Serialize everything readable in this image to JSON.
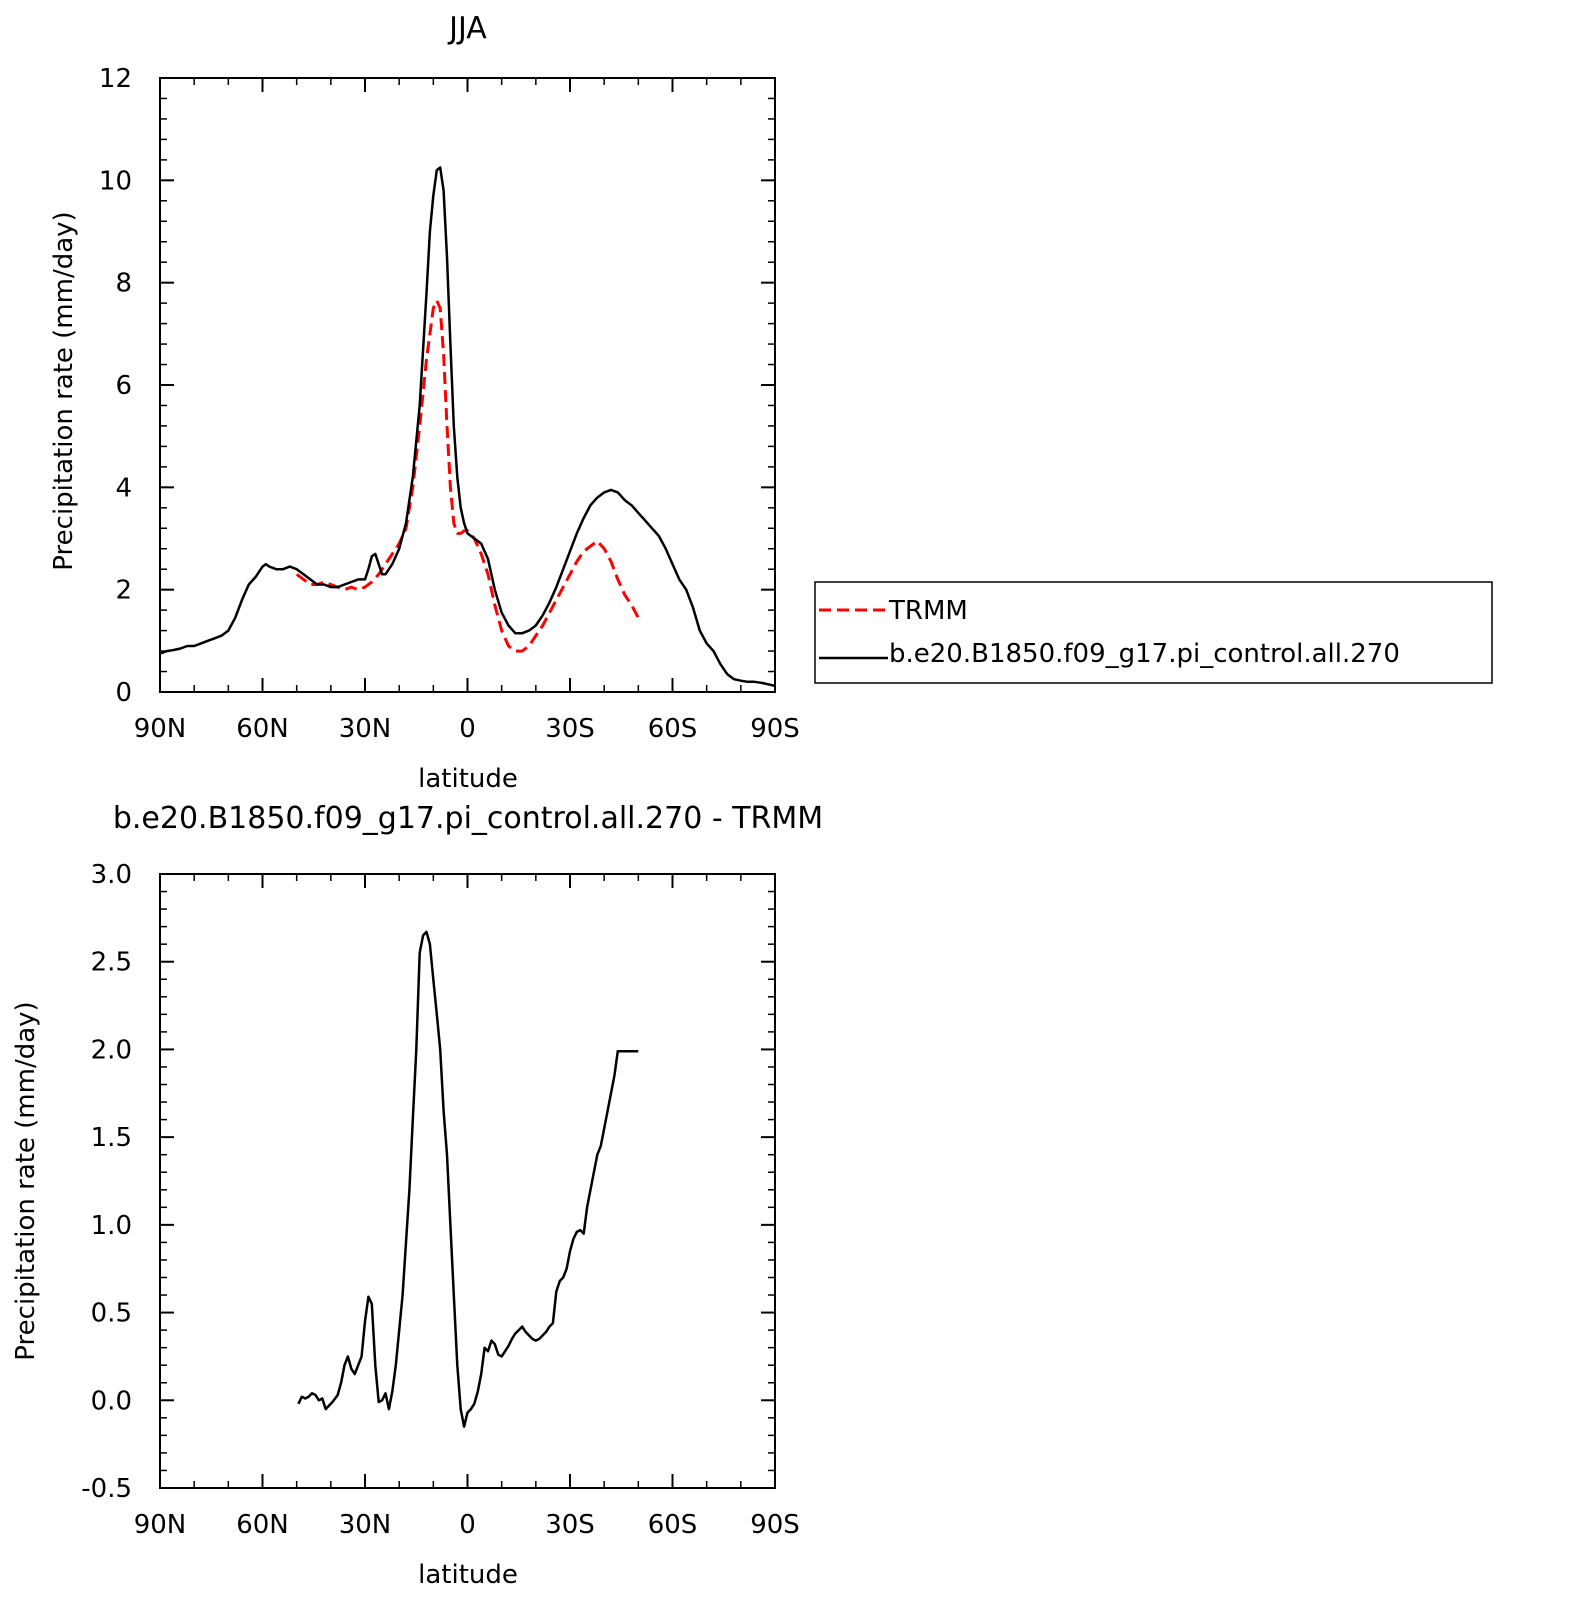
{
  "chart_data": [
    {
      "type": "line",
      "title": "JJA",
      "xlabel": "latitude",
      "ylabel": "Precipitation rate (mm/day)",
      "xlim": [
        90,
        -90
      ],
      "ylim": [
        0,
        12
      ],
      "x_ticks": [
        {
          "value": 90,
          "label": "90N"
        },
        {
          "value": 60,
          "label": "60N"
        },
        {
          "value": 30,
          "label": "30N"
        },
        {
          "value": 0,
          "label": "0"
        },
        {
          "value": -30,
          "label": "30S"
        },
        {
          "value": -60,
          "label": "60S"
        },
        {
          "value": -90,
          "label": "90S"
        }
      ],
      "y_ticks": [
        {
          "value": 0,
          "label": "0"
        },
        {
          "value": 2,
          "label": "2"
        },
        {
          "value": 4,
          "label": "4"
        },
        {
          "value": 6,
          "label": "6"
        },
        {
          "value": 8,
          "label": "8"
        },
        {
          "value": 10,
          "label": "10"
        },
        {
          "value": 12,
          "label": "12"
        }
      ],
      "legend": "right",
      "series": [
        {
          "name": "TRMM",
          "color": "#ff0000",
          "dash": "dashed",
          "x": [
            50,
            48,
            46,
            44,
            42,
            40,
            38,
            36,
            34,
            32,
            30,
            28,
            26,
            24,
            22,
            20,
            18,
            16,
            14,
            12,
            10,
            9,
            8,
            7,
            6,
            5,
            4,
            3,
            2,
            1,
            0,
            -2,
            -4,
            -6,
            -8,
            -10,
            -12,
            -14,
            -16,
            -18,
            -20,
            -22,
            -24,
            -26,
            -28,
            -30,
            -32,
            -34,
            -36,
            -38,
            -40,
            -42,
            -44,
            -46,
            -48,
            -50
          ],
          "values": [
            2.3,
            2.2,
            2.1,
            2.1,
            2.15,
            2.1,
            2.05,
            2.0,
            2.05,
            2.0,
            2.05,
            2.15,
            2.3,
            2.5,
            2.7,
            2.9,
            3.2,
            4.0,
            5.2,
            6.5,
            7.5,
            7.65,
            7.5,
            6.6,
            5.2,
            4.0,
            3.3,
            3.1,
            3.1,
            3.15,
            3.15,
            3.0,
            2.7,
            2.3,
            1.7,
            1.2,
            0.9,
            0.8,
            0.8,
            0.9,
            1.1,
            1.3,
            1.55,
            1.8,
            2.05,
            2.3,
            2.55,
            2.75,
            2.85,
            2.95,
            2.8,
            2.55,
            2.2,
            1.9,
            1.7,
            1.45
          ]
        },
        {
          "name": "b.e20.B1850.f09_g17.pi_control.all.270",
          "color": "#000000",
          "dash": "solid",
          "x": [
            90,
            88,
            86,
            84,
            82,
            80,
            78,
            76,
            74,
            72,
            70,
            68,
            66,
            64,
            62,
            60,
            59,
            58,
            56,
            54,
            52,
            50,
            48,
            46,
            44,
            42,
            40,
            38,
            36,
            34,
            32,
            30,
            29,
            28,
            27,
            26,
            25,
            24,
            22,
            20,
            18,
            16,
            14,
            12,
            11,
            10,
            9,
            8,
            7,
            6,
            5,
            4,
            3,
            2,
            1,
            0,
            -2,
            -4,
            -6,
            -8,
            -10,
            -12,
            -14,
            -16,
            -18,
            -20,
            -22,
            -24,
            -26,
            -28,
            -30,
            -32,
            -34,
            -36,
            -38,
            -40,
            -42,
            -44,
            -46,
            -48,
            -50,
            -52,
            -54,
            -56,
            -58,
            -60,
            -62,
            -64,
            -66,
            -68,
            -70,
            -72,
            -74,
            -76,
            -78,
            -80,
            -82,
            -84,
            -86,
            -88,
            -90
          ],
          "values": [
            0.75,
            0.8,
            0.82,
            0.85,
            0.9,
            0.9,
            0.95,
            1.0,
            1.05,
            1.1,
            1.2,
            1.45,
            1.8,
            2.1,
            2.25,
            2.45,
            2.5,
            2.45,
            2.4,
            2.4,
            2.45,
            2.4,
            2.3,
            2.2,
            2.1,
            2.1,
            2.05,
            2.05,
            2.1,
            2.15,
            2.2,
            2.2,
            2.4,
            2.65,
            2.7,
            2.5,
            2.3,
            2.3,
            2.5,
            2.8,
            3.3,
            4.2,
            5.6,
            7.8,
            9.0,
            9.7,
            10.2,
            10.25,
            9.8,
            8.5,
            6.8,
            5.2,
            4.2,
            3.6,
            3.3,
            3.1,
            3.0,
            2.9,
            2.6,
            2.0,
            1.55,
            1.3,
            1.15,
            1.15,
            1.2,
            1.3,
            1.5,
            1.75,
            2.05,
            2.4,
            2.75,
            3.1,
            3.4,
            3.65,
            3.8,
            3.9,
            3.95,
            3.9,
            3.75,
            3.65,
            3.5,
            3.35,
            3.2,
            3.05,
            2.8,
            2.5,
            2.2,
            2.0,
            1.65,
            1.2,
            0.95,
            0.8,
            0.55,
            0.35,
            0.25,
            0.22,
            0.2,
            0.2,
            0.18,
            0.15,
            0.12
          ]
        }
      ]
    },
    {
      "type": "line",
      "title": "b.e20.B1850.f09_g17.pi_control.all.270 - TRMM",
      "xlabel": "latitude",
      "ylabel": "Precipitation rate (mm/day)",
      "xlim": [
        90,
        -90
      ],
      "ylim": [
        -0.5,
        3.0
      ],
      "x_ticks": [
        {
          "value": 90,
          "label": "90N"
        },
        {
          "value": 60,
          "label": "60N"
        },
        {
          "value": 30,
          "label": "30N"
        },
        {
          "value": 0,
          "label": "0"
        },
        {
          "value": -30,
          "label": "30S"
        },
        {
          "value": -60,
          "label": "60S"
        },
        {
          "value": -90,
          "label": "90S"
        }
      ],
      "y_ticks": [
        {
          "value": -0.5,
          "label": "-0.5"
        },
        {
          "value": 0.0,
          "label": "0.0"
        },
        {
          "value": 0.5,
          "label": "0.5"
        },
        {
          "value": 1.0,
          "label": "1.0"
        },
        {
          "value": 1.5,
          "label": "1.5"
        },
        {
          "value": 2.0,
          "label": "2.0"
        },
        {
          "value": 2.5,
          "label": "2.5"
        },
        {
          "value": 3.0,
          "label": "3.0"
        }
      ],
      "series": [
        {
          "color": "#000000",
          "dash": "solid",
          "x": [
            49.5,
            48.5,
            47.5,
            46.5,
            45.5,
            44.5,
            43.5,
            42.5,
            41.5,
            40.5,
            39.5,
            38,
            37,
            36,
            35,
            34,
            33,
            32,
            31,
            30,
            29,
            28,
            27,
            26,
            25,
            24,
            23,
            22,
            21,
            20,
            19,
            18,
            17,
            16,
            15,
            14,
            13,
            12,
            11,
            10,
            9,
            8,
            7,
            6,
            5,
            4,
            3,
            2,
            1,
            0,
            -1,
            -2,
            -3,
            -4,
            -5,
            -6,
            -7,
            -8,
            -9,
            -10,
            -11,
            -12,
            -13,
            -14,
            -15,
            -16,
            -17,
            -18,
            -19,
            -20,
            -21,
            -22,
            -23,
            -24,
            -25,
            -26,
            -27,
            -28,
            -29,
            -30,
            -31,
            -32,
            -33,
            -34,
            -35,
            -36,
            -37,
            -38,
            -39,
            -40,
            -41,
            -42,
            -43,
            -44,
            -45,
            -46,
            -47,
            -48,
            -49,
            -50
          ],
          "values": [
            -0.02,
            0.02,
            0.01,
            0.02,
            0.04,
            0.03,
            0.0,
            0.01,
            -0.05,
            -0.03,
            -0.01,
            0.03,
            0.1,
            0.2,
            0.25,
            0.18,
            0.15,
            0.2,
            0.25,
            0.45,
            0.59,
            0.55,
            0.2,
            -0.01,
            0.0,
            0.04,
            -0.05,
            0.05,
            0.2,
            0.4,
            0.6,
            0.9,
            1.2,
            1.6,
            2.0,
            2.55,
            2.65,
            2.67,
            2.6,
            2.4,
            2.2,
            2.0,
            1.65,
            1.4,
            1.0,
            0.6,
            0.2,
            -0.05,
            -0.15,
            -0.07,
            -0.05,
            -0.02,
            0.05,
            0.15,
            0.3,
            0.28,
            0.34,
            0.32,
            0.26,
            0.25,
            0.28,
            0.31,
            0.35,
            0.38,
            0.4,
            0.42,
            0.39,
            0.37,
            0.35,
            0.34,
            0.35,
            0.37,
            0.39,
            0.42,
            0.44,
            0.62,
            0.68,
            0.7,
            0.75,
            0.85,
            0.92,
            0.96,
            0.97,
            0.95,
            1.1,
            1.2,
            1.3,
            1.4,
            1.45,
            1.55,
            1.65,
            1.75,
            1.85,
            1.99,
            1.99,
            1.99,
            1.99,
            1.99,
            1.99,
            1.99
          ]
        }
      ]
    }
  ]
}
